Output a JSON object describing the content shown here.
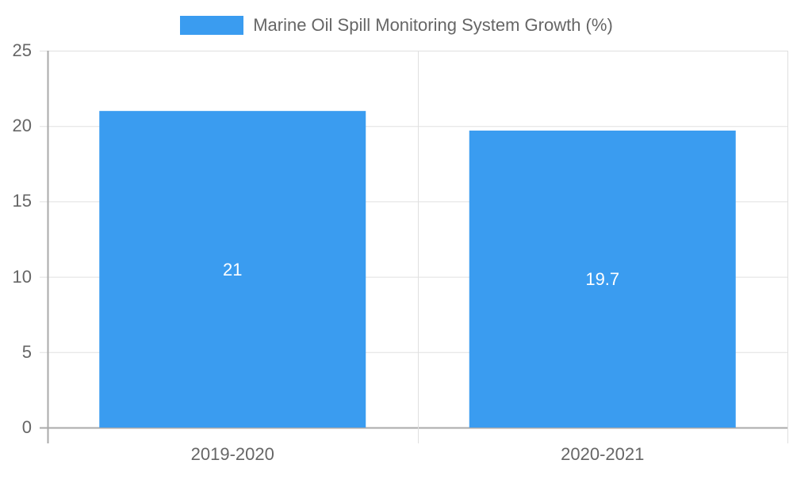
{
  "chart_data": {
    "type": "bar",
    "title": "",
    "categories": [
      "2019-2020",
      "2020-2021"
    ],
    "series": [
      {
        "name": "Marine Oil Spill Monitoring System Growth (%)",
        "values": [
          21,
          19.7
        ],
        "color": "#3a9cf0"
      }
    ],
    "values": [
      21,
      19.7
    ],
    "value_labels": [
      "21",
      "19.7"
    ],
    "xlabel": "",
    "ylabel": "",
    "ylim": [
      0,
      25
    ],
    "yticks": [
      0,
      5,
      10,
      15,
      20,
      25
    ],
    "ytick_labels": [
      "0",
      "5",
      "10",
      "15",
      "20",
      "25"
    ],
    "grid": true,
    "legend_position": "top"
  },
  "legend": {
    "label": "Marine Oil Spill Monitoring System Growth (%)",
    "color": "#3a9cf0"
  },
  "colors": {
    "bar": "#3a9cf0",
    "grid": "#e0e0e0",
    "axis": "#aaaaaa",
    "text": "#666666"
  }
}
